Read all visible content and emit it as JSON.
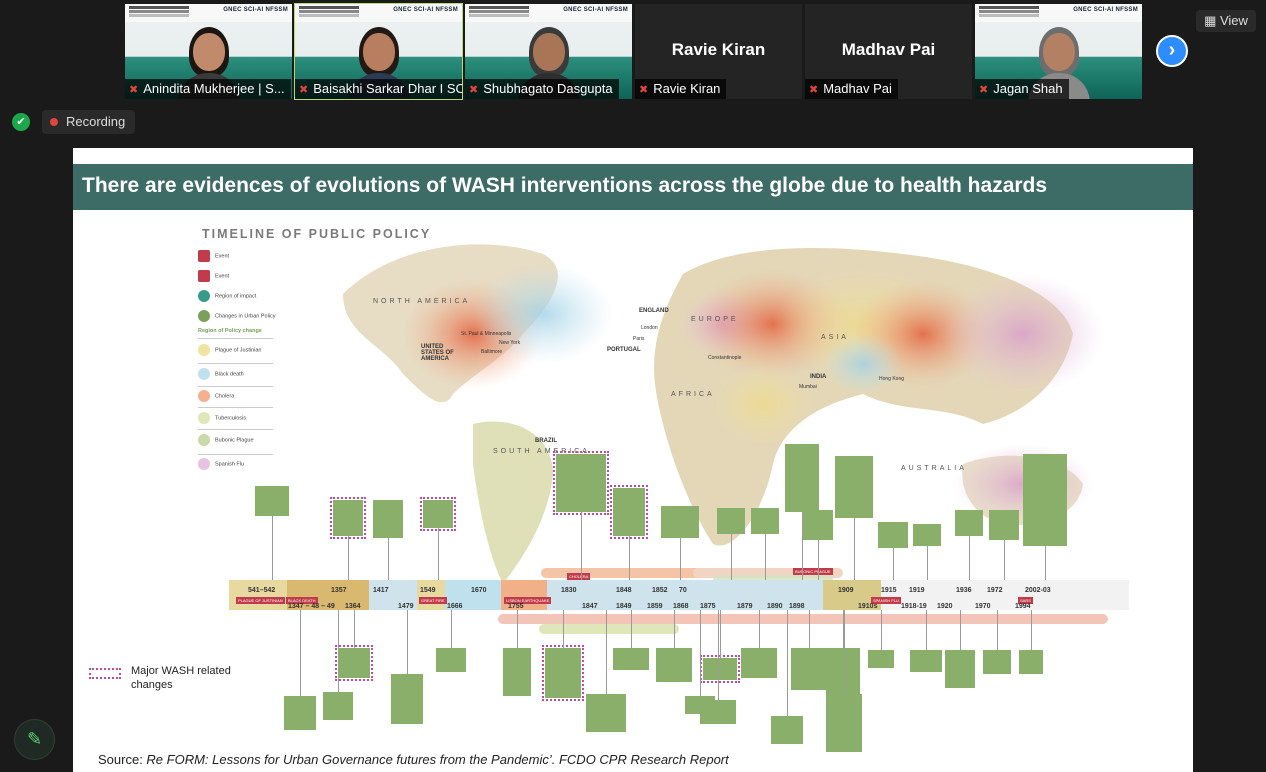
{
  "participants": [
    {
      "name": "Anindita Mukherjee | S...",
      "video": true,
      "hair": "#1c1612",
      "skin": "#c18a6b",
      "shirt": "#3a3a3a"
    },
    {
      "name": "Baisakhi Sarkar Dhar I SCI...",
      "video": true,
      "hair": "#231914",
      "skin": "#b77f60",
      "shirt": "#2b3a55"
    },
    {
      "name": "Shubhagato Dasgupta",
      "video": true,
      "hair": "#3a3a3a",
      "skin": "#a87556",
      "shirt": "#2e2e2e"
    },
    {
      "name": "Ravie Kiran",
      "video": false
    },
    {
      "name": "Madhav Pai",
      "video": false
    },
    {
      "name": "Jagan Shah",
      "video": true,
      "hair": "#6d6d6d",
      "skin": "#b48063",
      "shirt": "#8a8a8a"
    }
  ],
  "tile_logos": "GNEC SCI-AI NFSSM",
  "controls": {
    "view_label": "View",
    "recording_label": "Recording"
  },
  "slide": {
    "title": "There are evidences of evolutions of WASH interventions across the globe due to health hazards",
    "timeline_title": "TIMELINE OF PUBLIC POLICY",
    "regions": [
      "NORTH AMERICA",
      "EUROPE",
      "ASIA",
      "AFRICA",
      "SOUTH AMERICA",
      "AUSTRALIA"
    ],
    "countries": [
      "UNITED STATES OF AMERICA",
      "ENGLAND",
      "PORTUGAL",
      "INDIA",
      "BRAZIL"
    ],
    "cities": [
      "St. Paul & Minneapolis",
      "New York",
      "Baltimore",
      "London",
      "Paris",
      "Constantinople",
      "Mumbai",
      "Hong Kong"
    ],
    "legend": {
      "items": [
        {
          "label": "Event",
          "color": "#c23b4a"
        },
        {
          "label": "Event",
          "color": "#c23b4a"
        },
        {
          "label": "Region of impact",
          "color": "#3a9a8a"
        },
        {
          "label": "Changes in Urban Policy",
          "color": "#7aa05a"
        }
      ],
      "section": "Region of Policy change",
      "plagues": [
        {
          "label": "Plague of Justinian",
          "color": "#f1e3a2"
        },
        {
          "label": "Black death",
          "color": "#bfe1ee"
        },
        {
          "label": "Cholera",
          "color": "#f4b08f"
        },
        {
          "label": "Tuberculosis",
          "color": "#dfe6b9"
        },
        {
          "label": "Bubonic Plague",
          "color": "#c9d9a8"
        },
        {
          "label": "Spanish Flu",
          "color": "#e9c2df"
        }
      ]
    },
    "years_top": [
      "541–542",
      "1357",
      "1417",
      "1549",
      "1670",
      "1830",
      "1848",
      "1852",
      "70",
      "1909",
      "1915",
      "1919",
      "1936",
      "1972",
      "2002-03"
    ],
    "years_bottom": [
      "1347 – 48 – 49",
      "1364",
      "1479",
      "1666",
      "1755",
      "1847",
      "1849",
      "1859",
      "1868",
      "1875",
      "1879",
      "1890",
      "1898",
      "1910s",
      "1918-19",
      "1920",
      "1970",
      "1994"
    ],
    "bar_labels": [
      "PLAGUE OF JUSTINIAN",
      "BLACK DEATH",
      "GREAT FIRE",
      "LISBON EARTHQUAKE",
      "CHOLERA",
      "BUBONIC PLAGUE",
      "SPANISH FLU",
      "SARS"
    ],
    "wash_legend": "Major WASH related changes",
    "source_prefix": "Source: ",
    "source_text": "Re FORM: Lessons for Urban Governance futures from the Pandemic’. FCDO CPR Research Report"
  }
}
